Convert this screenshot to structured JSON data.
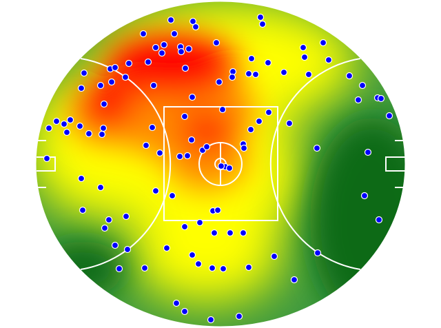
{
  "colors": {
    "background": "#ffffff",
    "heat_high": "#ff0000",
    "heat_mid_high": "#ff8a00",
    "heat_mid": "#ffff00",
    "heat_low": "#3f9a3f",
    "heat_lowest": "#0b6b12",
    "markings": "#ffffff",
    "marker_fill": "#0000ff",
    "marker_stroke": "#ffffff"
  },
  "chart_data": {
    "type": "scatter",
    "title": "",
    "xlabel": "",
    "ylabel": "",
    "background": "heatmap",
    "field_markings": [
      "center-square",
      "center-circle",
      "center-line",
      "arcs-50m",
      "goal-squares"
    ],
    "x": [
      248,
      280,
      284,
      208,
      253,
      378,
      381,
      314,
      469,
      440,
      442,
      477,
      238,
      226,
      262,
      274,
      263,
      235,
      215,
      187,
      160,
      167,
      182,
      162,
      146,
      122,
      118,
      151,
      223,
      269,
      279,
      318,
      338,
      337,
      361,
      371,
      365,
      389,
      412,
      448,
      507,
      526,
      520,
      548,
      553,
      565,
      420,
      390,
      376,
      364,
      323,
      268,
      221,
      212,
      232,
      261,
      272,
      278,
      294,
      300,
      353,
      354,
      327,
      333,
      321,
      460,
      534,
      529,
      550,
      150,
      148,
      129,
      97,
      82,
      71,
      93,
      102,
      116,
      68,
      118,
      146,
      120,
      158,
      152,
      183,
      167,
      185,
      226,
      250,
      268,
      290,
      309,
      316,
      311,
      334,
      353,
      242,
      279,
      288,
      308,
      324,
      361,
      398,
      461,
      427,
      256,
      268,
      306,
      347,
      173,
      210
    ],
    "y": [
      29,
      31,
      39,
      49,
      49,
      25,
      35,
      62,
      62,
      69,
      83,
      87,
      65,
      69,
      68,
      71,
      75,
      77,
      90,
      92,
      100,
      98,
      112,
      119,
      124,
      106,
      128,
      151,
      124,
      99,
      141,
      119,
      104,
      112,
      107,
      108,
      85,
      91,
      105,
      108,
      110,
      124,
      145,
      142,
      143,
      168,
      179,
      163,
      176,
      188,
      159,
      169,
      185,
      211,
      222,
      227,
      226,
      203,
      218,
      213,
      209,
      215,
      242,
      244,
      241,
      215,
      221,
      284,
      319,
      186,
      195,
      194,
      192,
      176,
      186,
      180,
      174,
      183,
      230,
      259,
      272,
      305,
      319,
      331,
      314,
      356,
      362,
      277,
      284,
      329,
      323,
      306,
      305,
      338,
      338,
      338,
      360,
      370,
      383,
      389,
      390,
      388,
      372,
      367,
      406,
      440,
      452,
      464,
      459,
      390,
      389
    ]
  }
}
